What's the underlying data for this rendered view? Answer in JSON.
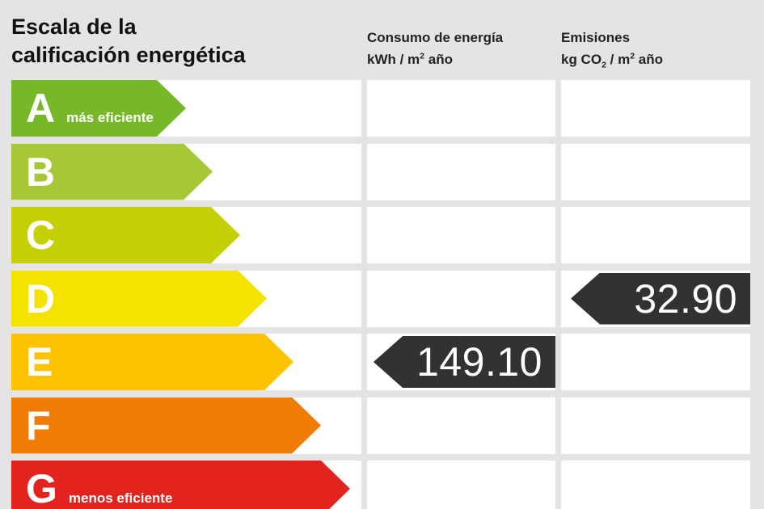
{
  "header": {
    "title_line1": "Escala de la",
    "title_line2": "calificación energética",
    "consumption": {
      "line1": "Consumo de energía",
      "unit_prefix": "kWh / m",
      "unit_sup": "2",
      "unit_suffix": " año"
    },
    "emissions": {
      "line1": "Emisiones",
      "unit_prefix": "kg CO",
      "unit_sub": "2",
      "unit_mid": " / m",
      "unit_sup": "2",
      "unit_suffix": " año"
    }
  },
  "chart_data": {
    "type": "bar",
    "title": "Escala de la calificación energética",
    "categories": [
      "A",
      "B",
      "C",
      "D",
      "E",
      "F",
      "G"
    ],
    "ratings": [
      {
        "letter": "A",
        "note": "más eficiente",
        "color": "#76b82a"
      },
      {
        "letter": "B",
        "note": "",
        "color": "#a6c836"
      },
      {
        "letter": "C",
        "note": "",
        "color": "#c5d009"
      },
      {
        "letter": "D",
        "note": "",
        "color": "#f4e200"
      },
      {
        "letter": "E",
        "note": "",
        "color": "#fdc300"
      },
      {
        "letter": "F",
        "note": "",
        "color": "#ee7c05"
      },
      {
        "letter": "G",
        "note": "menos eficiente",
        "color": "#e2231e"
      }
    ],
    "consumption": {
      "value": "149.10",
      "rating": "E",
      "unit": "kWh / m2 año"
    },
    "emissions": {
      "value": "32.90",
      "rating": "D",
      "unit": "kg CO2 / m2 año"
    },
    "marker_color": "#323232",
    "legend_position": "none"
  }
}
